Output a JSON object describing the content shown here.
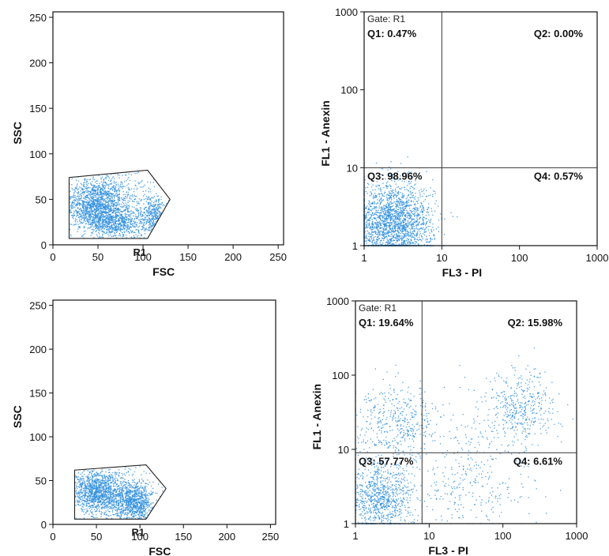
{
  "chart_data": [
    {
      "type": "scatter",
      "panel": "top-left",
      "xlabel": "FSC",
      "ylabel": "SSC",
      "xlim": [
        0,
        256
      ],
      "ylim": [
        0,
        256
      ],
      "x_ticks": [
        0,
        50,
        100,
        150,
        200,
        250
      ],
      "y_ticks": [
        0,
        50,
        100,
        150,
        200,
        250
      ],
      "region": {
        "label": "R1",
        "polygon": [
          [
            18,
            7
          ],
          [
            18,
            74
          ],
          [
            105,
            82
          ],
          [
            130,
            50
          ],
          [
            105,
            7
          ]
        ]
      },
      "point_color": "#2f8fde"
    },
    {
      "type": "scatter",
      "panel": "top-right",
      "scale": "log",
      "xlabel": "FL3  - PI",
      "ylabel": "FL1  - Anexin",
      "xlim": [
        1,
        1000
      ],
      "ylim": [
        1,
        1000
      ],
      "x_ticks": [
        1,
        10,
        100,
        1000
      ],
      "y_ticks": [
        1,
        10,
        100,
        1000
      ],
      "gate_label": "Gate: R1",
      "quadrant_lines": {
        "x": 10,
        "y": 10
      },
      "quadrants": [
        {
          "name": "Q1",
          "label": "Q1: 0.47%"
        },
        {
          "name": "Q2",
          "label": "Q2: 0.00%"
        },
        {
          "name": "Q3",
          "label": "Q3: 98.96%"
        },
        {
          "name": "Q4",
          "label": "Q4: 0.57%"
        }
      ],
      "point_color": "#2f8fde"
    },
    {
      "type": "scatter",
      "panel": "bottom-left",
      "xlabel": "FSC",
      "ylabel": "SSC",
      "xlim": [
        0,
        256
      ],
      "ylim": [
        0,
        256
      ],
      "x_ticks": [
        0,
        50,
        100,
        150,
        200,
        250
      ],
      "y_ticks": [
        0,
        50,
        100,
        150,
        200,
        250
      ],
      "region": {
        "label": "R1",
        "polygon": [
          [
            25,
            6
          ],
          [
            25,
            62
          ],
          [
            107,
            68
          ],
          [
            130,
            41
          ],
          [
            107,
            6
          ]
        ]
      },
      "point_color": "#2f8fde"
    },
    {
      "type": "scatter",
      "panel": "bottom-right",
      "scale": "log",
      "xlabel": "FL3  - PI",
      "ylabel": "FL1  - Anexin",
      "xlim": [
        1,
        1000
      ],
      "ylim": [
        1,
        1000
      ],
      "x_ticks": [
        1,
        10,
        100,
        1000
      ],
      "y_ticks": [
        1,
        10,
        100,
        1000
      ],
      "gate_label": "Gate: R1",
      "quadrant_lines": {
        "x": 8,
        "y": 9
      },
      "quadrants": [
        {
          "name": "Q1",
          "label": "Q1: 19.64%"
        },
        {
          "name": "Q2",
          "label": "Q2: 15.98%"
        },
        {
          "name": "Q3",
          "label": "Q3: 57.77%"
        },
        {
          "name": "Q4",
          "label": "Q4: 6.61%"
        }
      ],
      "point_color": "#2f8fde"
    }
  ]
}
